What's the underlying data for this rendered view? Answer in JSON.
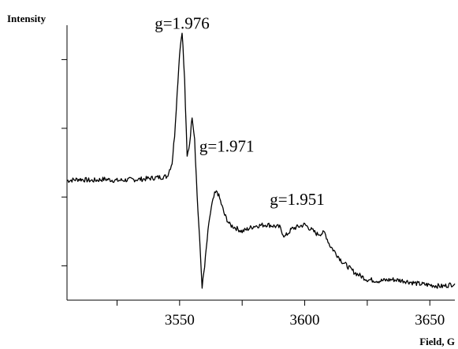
{
  "chart_data": {
    "type": "line",
    "title": "",
    "xlabel": "Field, G",
    "ylabel": "Intensity",
    "xlim": [
      3505,
      3660
    ],
    "ylim": [
      0,
      1
    ],
    "x_ticks": [
      3550,
      3600,
      3650
    ],
    "x_tick_labels": [
      "3550",
      "3600",
      "3650"
    ],
    "y_tick_count": 4,
    "grid": false,
    "legend": "none",
    "line_color": "#000000",
    "annotations": [
      {
        "text": "g=1.976",
        "x": 3551,
        "y": 0.97
      },
      {
        "text": "g=1.971",
        "x": 3556,
        "y": 0.56
      },
      {
        "text": "g=1.951",
        "x": 3597,
        "y": 0.33
      }
    ],
    "series": [
      {
        "x": [
          3505,
          3510,
          3515,
          3520,
          3525,
          3530,
          3535,
          3540,
          3545,
          3547,
          3548,
          3549,
          3550,
          3551,
          3552,
          3553,
          3554,
          3555,
          3556,
          3557,
          3558,
          3559,
          3560,
          3561,
          3562,
          3563,
          3564,
          3565,
          3566,
          3568,
          3570,
          3575,
          3580,
          3585,
          3590,
          3592,
          3595,
          3600,
          3605,
          3608,
          3610,
          3615,
          3620,
          3625,
          3630,
          3635,
          3640,
          3645,
          3650,
          3655,
          3660
        ],
        "y": [
          0.435,
          0.44,
          0.435,
          0.44,
          0.435,
          0.438,
          0.44,
          0.445,
          0.45,
          0.5,
          0.6,
          0.75,
          0.9,
          0.98,
          0.8,
          0.52,
          0.57,
          0.67,
          0.59,
          0.38,
          0.22,
          0.05,
          0.12,
          0.22,
          0.3,
          0.35,
          0.385,
          0.395,
          0.37,
          0.31,
          0.275,
          0.25,
          0.27,
          0.275,
          0.265,
          0.23,
          0.26,
          0.275,
          0.24,
          0.245,
          0.2,
          0.14,
          0.1,
          0.075,
          0.07,
          0.075,
          0.07,
          0.06,
          0.055,
          0.05,
          0.06
        ]
      }
    ]
  }
}
